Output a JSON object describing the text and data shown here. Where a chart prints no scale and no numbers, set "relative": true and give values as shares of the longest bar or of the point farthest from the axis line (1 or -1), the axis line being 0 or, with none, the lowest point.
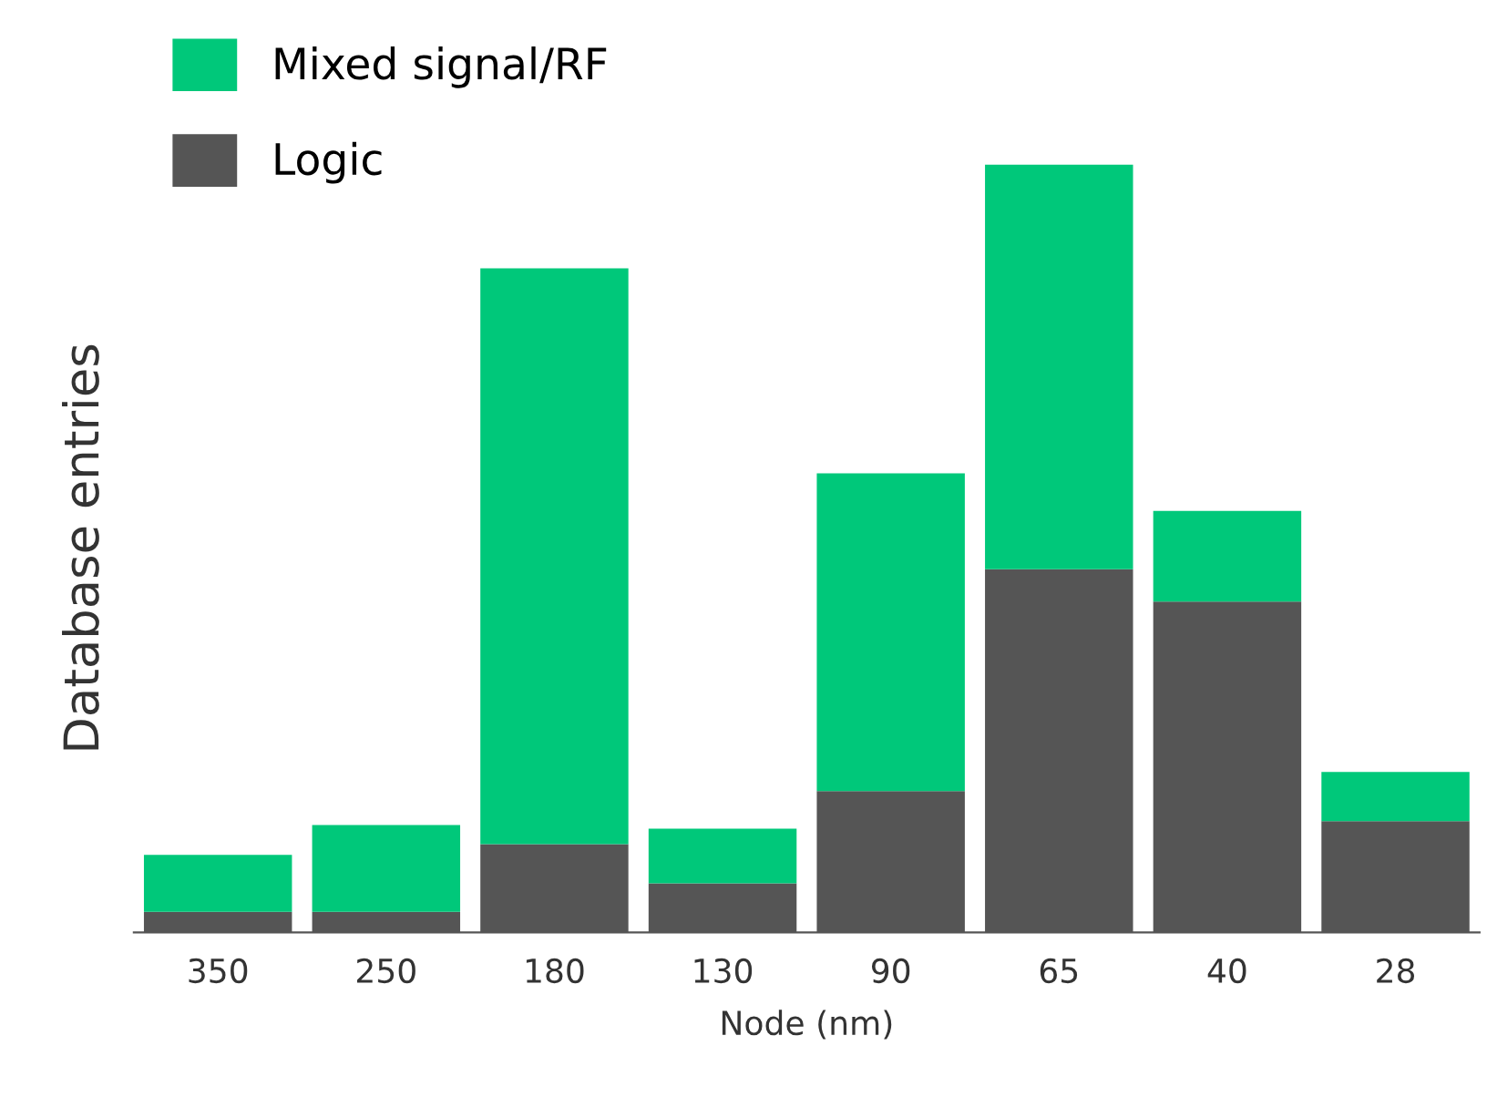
{
  "chart_data": {
    "type": "bar",
    "stacked": true,
    "relative": true,
    "xlabel": "Node (nm)",
    "ylabel": "Database entries",
    "categories": [
      "350",
      "250",
      "180",
      "130",
      "90",
      "65",
      "40",
      "28"
    ],
    "series": [
      {
        "name": "Logic",
        "color": "#555555",
        "values": [
          0.027,
          0.027,
          0.115,
          0.064,
          0.184,
          0.473,
          0.431,
          0.145
        ]
      },
      {
        "name": "Mixed signal/RF",
        "color": "#00c87a",
        "values": [
          0.074,
          0.113,
          0.75,
          0.071,
          0.414,
          0.527,
          0.118,
          0.064
        ]
      }
    ],
    "legend": "top left",
    "grid": false
  }
}
